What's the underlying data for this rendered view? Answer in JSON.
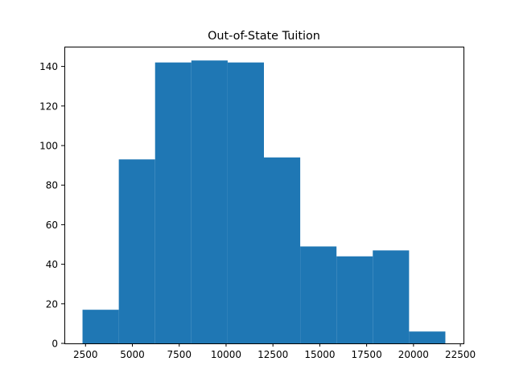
{
  "chart_data": {
    "type": "bar",
    "title": "Out-of-State Tuition",
    "xlabel": "",
    "ylabel": "",
    "bin_edges": [
      2340,
      4276,
      6212,
      8148,
      10084,
      12020,
      13956,
      15892,
      17828,
      19764,
      21700
    ],
    "values": [
      17,
      93,
      142,
      143,
      142,
      94,
      49,
      44,
      47,
      6
    ],
    "xlim": [
      1372,
      22668
    ],
    "ylim": [
      0,
      150
    ],
    "xticks": [
      2500,
      5000,
      7500,
      10000,
      12500,
      15000,
      17500,
      20000,
      22500
    ],
    "yticks": [
      0,
      20,
      40,
      60,
      80,
      100,
      120,
      140
    ],
    "bar_color": "#1f77b4",
    "grid": false,
    "legend": "none"
  }
}
